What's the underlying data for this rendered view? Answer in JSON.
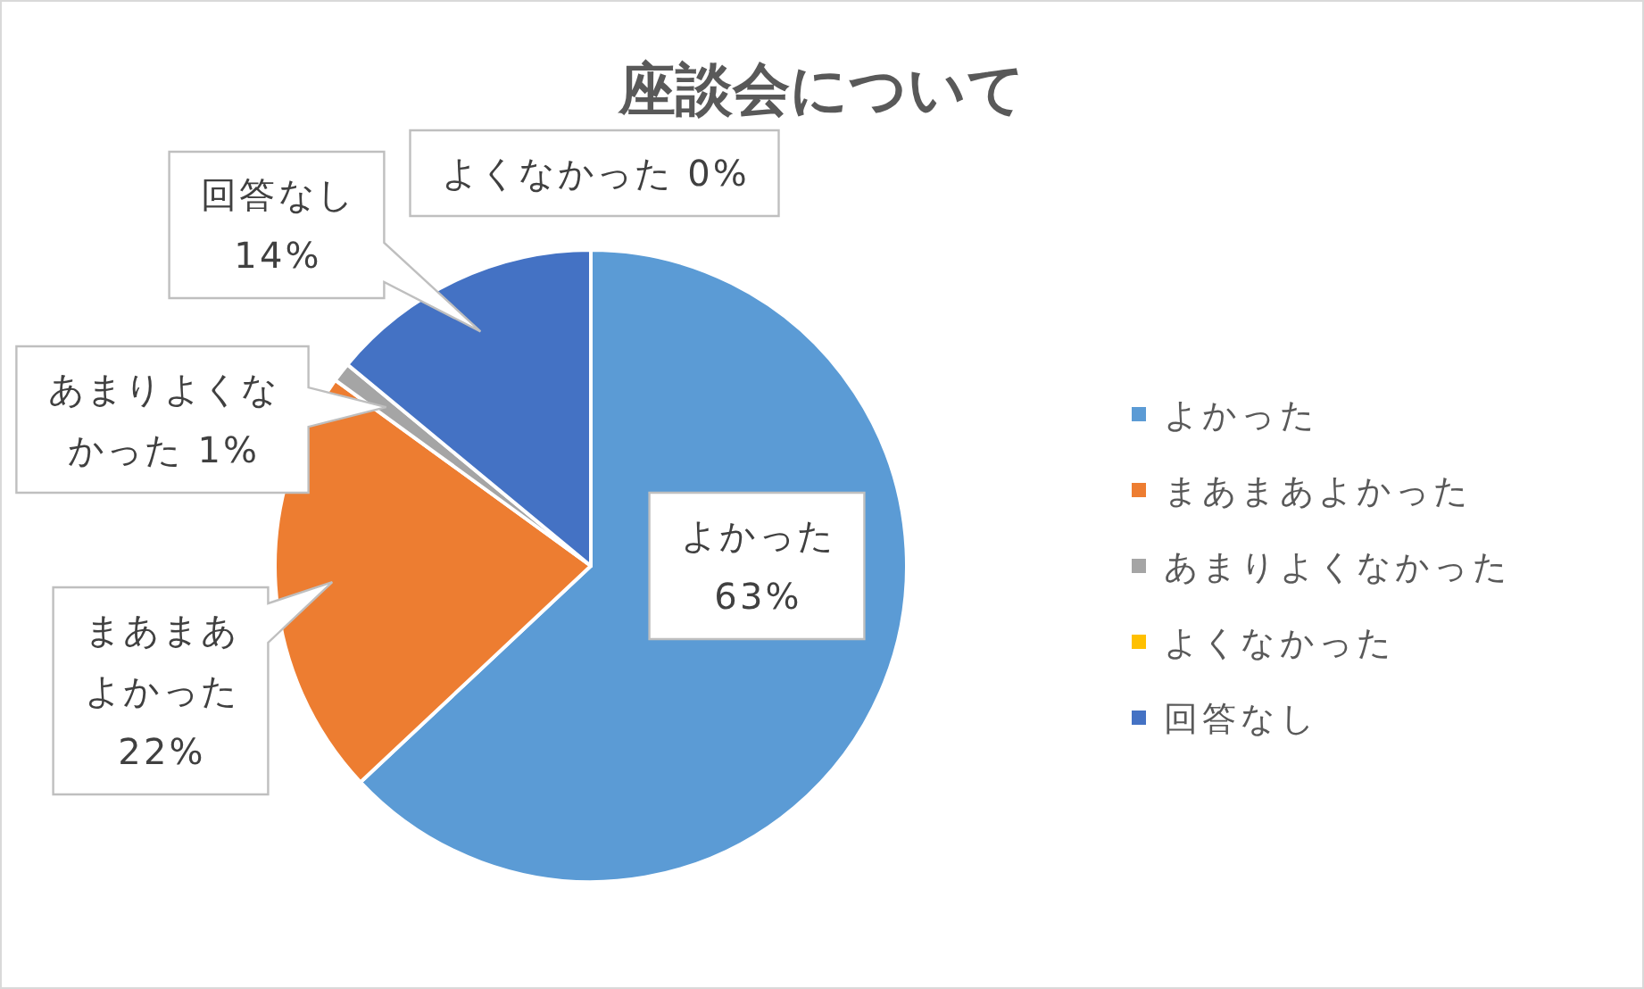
{
  "chart_data": {
    "type": "pie",
    "title": "座談会について",
    "categories": [
      "よかった",
      "まあまあよかった",
      "あまりよくなかった",
      "よくなかった",
      "回答なし"
    ],
    "values": [
      63,
      22,
      1,
      0,
      14
    ],
    "colors": [
      "#5b9bd5",
      "#ed7d31",
      "#a5a5a5",
      "#ffc000",
      "#4472c4"
    ],
    "value_labels": [
      "63%",
      "22%",
      "1%",
      "0%",
      "14%"
    ],
    "legend": "right"
  }
}
